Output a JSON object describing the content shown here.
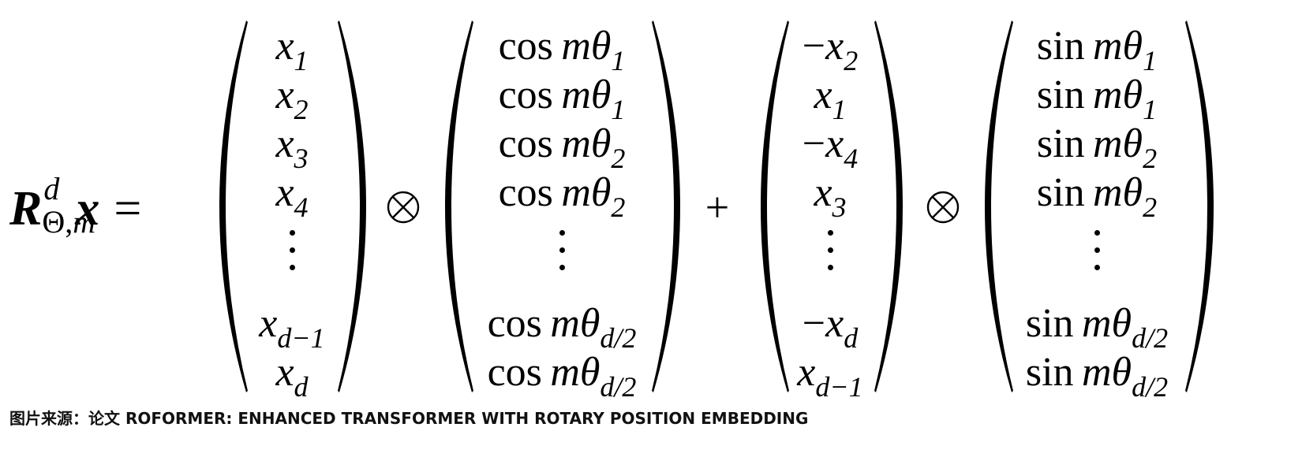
{
  "formula": {
    "lhs": {
      "symbol": "R",
      "superscript": "d",
      "subscript_theta": "Θ",
      "subscript_sep": ",",
      "subscript_m": "m",
      "vector": "x",
      "equals": "="
    },
    "ops": {
      "first": "⊗",
      "plus": "+",
      "second": "⊗"
    },
    "vec_x": [
      {
        "base": "x",
        "sub": "1"
      },
      {
        "base": "x",
        "sub": "2"
      },
      {
        "base": "x",
        "sub": "3"
      },
      {
        "base": "x",
        "sub": "4"
      },
      {
        "dots": true
      },
      {
        "base": "x",
        "sub": "d−1"
      },
      {
        "base": "x",
        "sub": "d"
      }
    ],
    "vec_cos": [
      {
        "fn": "cos",
        "var": "mθ",
        "sub": "1"
      },
      {
        "fn": "cos",
        "var": "mθ",
        "sub": "1"
      },
      {
        "fn": "cos",
        "var": "mθ",
        "sub": "2"
      },
      {
        "fn": "cos",
        "var": "mθ",
        "sub": "2"
      },
      {
        "dots": true
      },
      {
        "fn": "cos",
        "var": "mθ",
        "sub": "d/2"
      },
      {
        "fn": "cos",
        "var": "mθ",
        "sub": "d/2"
      }
    ],
    "vec_rot": [
      {
        "sign": "−",
        "base": "x",
        "sub": "2"
      },
      {
        "sign": "",
        "base": "x",
        "sub": "1"
      },
      {
        "sign": "−",
        "base": "x",
        "sub": "4"
      },
      {
        "sign": "",
        "base": "x",
        "sub": "3"
      },
      {
        "dots": true
      },
      {
        "sign": "−",
        "base": "x",
        "sub": "d"
      },
      {
        "sign": "",
        "base": "x",
        "sub": "d−1"
      }
    ],
    "vec_sin": [
      {
        "fn": "sin",
        "var": "mθ",
        "sub": "1"
      },
      {
        "fn": "sin",
        "var": "mθ",
        "sub": "1"
      },
      {
        "fn": "sin",
        "var": "mθ",
        "sub": "2"
      },
      {
        "fn": "sin",
        "var": "mθ",
        "sub": "2"
      },
      {
        "dots": true
      },
      {
        "fn": "sin",
        "var": "mθ",
        "sub": "d/2"
      },
      {
        "fn": "sin",
        "var": "mθ",
        "sub": "d/2"
      }
    ]
  },
  "caption": "图片来源：论文 ROFORMER: ENHANCED TRANSFORMER WITH ROTARY POSITION EMBEDDING"
}
